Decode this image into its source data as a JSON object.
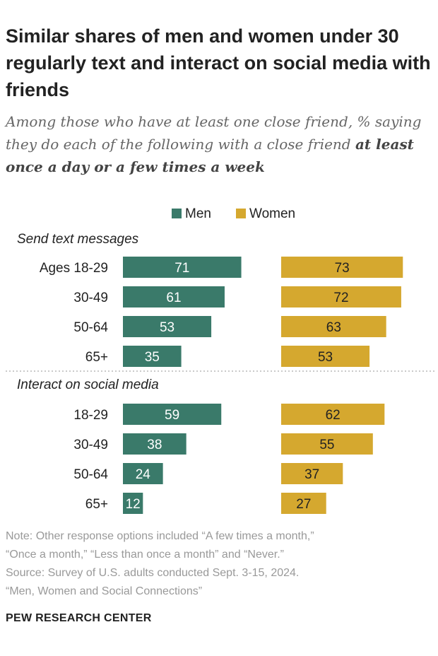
{
  "title": "Similar shares of men and women under 30 regularly text and interact on social media with friends",
  "subtitle_plain": "Among those who have at least one close friend, % saying they do each of the following with a close friend ",
  "subtitle_bold": "at least once a day or a few times a week",
  "colors": {
    "men": "#3a7a6a",
    "women": "#d5a82f",
    "text": "#222222",
    "bar_label": "#ffffff",
    "women_label": "#222222",
    "note": "#999999"
  },
  "chart_data": {
    "type": "bar",
    "orientation": "horizontal",
    "legend": {
      "position": "top-center",
      "entries": [
        "Men",
        "Women"
      ]
    },
    "series_names": [
      "Men",
      "Women"
    ],
    "ylim": [
      0,
      100
    ],
    "groups": [
      {
        "title": "Send text messages",
        "categories": [
          "Ages 18-29",
          "30-49",
          "50-64",
          "65+"
        ],
        "series": [
          {
            "name": "Men",
            "values": [
              71,
              61,
              53,
              35
            ]
          },
          {
            "name": "Women",
            "values": [
              73,
              72,
              63,
              53
            ]
          }
        ]
      },
      {
        "title": "Interact on social media",
        "categories": [
          "18-29",
          "30-49",
          "50-64",
          "65+"
        ],
        "series": [
          {
            "name": "Men",
            "values": [
              59,
              38,
              24,
              12
            ]
          },
          {
            "name": "Women",
            "values": [
              62,
              55,
              37,
              27
            ]
          }
        ]
      }
    ]
  },
  "notes": [
    "Note: Other response options included “A few times a month,”",
    "“Once a month,” “Less than once a month” and “Never.”",
    "Source: Survey of U.S. adults conducted Sept. 3-15, 2024.",
    "“Men, Women and Social Connections”"
  ],
  "brand": "PEW RESEARCH CENTER"
}
